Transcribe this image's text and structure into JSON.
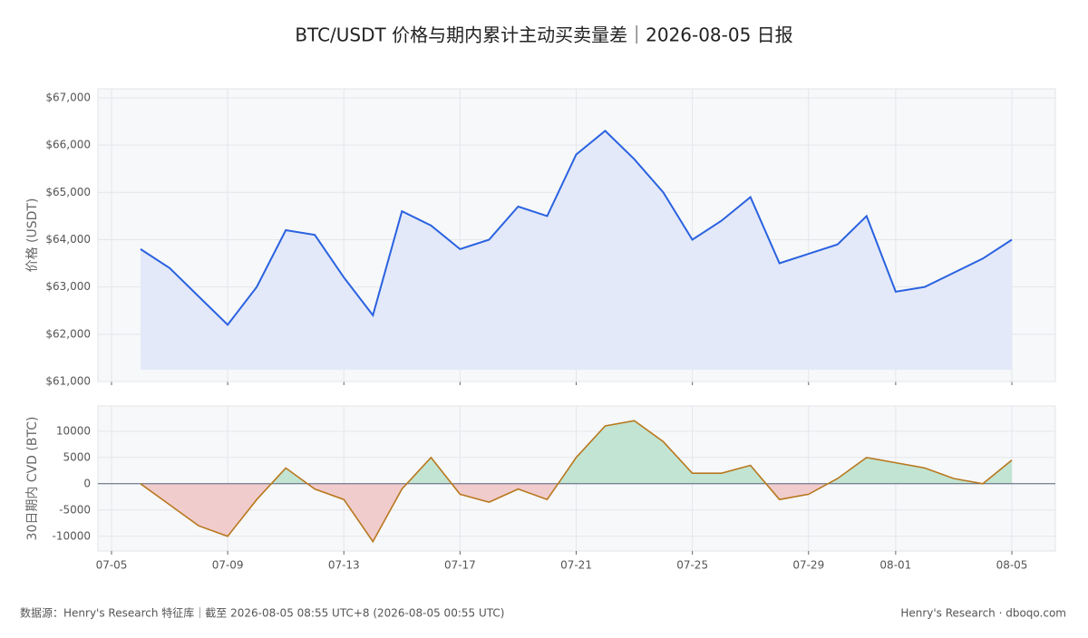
{
  "title": "BTC/USDT 价格与期内累计主动买卖量差｜2026-08-05 日报",
  "footer_left": "数据源：Henry's Research 特征库｜截至 2026-08-05 08:55 UTC+8 (2026-08-05 00:55 UTC)",
  "footer_right": "Henry's Research · dboqo.com",
  "chart_data": [
    {
      "type": "line",
      "ylabel": "价格 (USDT)",
      "color": "#2a62e0",
      "fill": "#e3e9f8",
      "grid": true,
      "x": [
        "07-06",
        "07-07",
        "07-08",
        "07-09",
        "07-10",
        "07-11",
        "07-12",
        "07-13",
        "07-14",
        "07-15",
        "07-16",
        "07-17",
        "07-18",
        "07-19",
        "07-20",
        "07-21",
        "07-22",
        "07-23",
        "07-24",
        "07-25",
        "07-26",
        "07-27",
        "07-28",
        "07-29",
        "07-30",
        "07-31",
        "08-01",
        "08-02",
        "08-03",
        "08-04",
        "08-05"
      ],
      "values": [
        63800,
        63400,
        62800,
        62200,
        63000,
        64200,
        64100,
        63200,
        62400,
        64600,
        64300,
        63800,
        64000,
        64700,
        64500,
        65800,
        66300,
        65700,
        65000,
        64000,
        64400,
        64900,
        63500,
        63700,
        63900,
        64500,
        62900,
        63000,
        63300,
        63600,
        64000
      ],
      "xlim": [
        "07-05",
        "08-05"
      ],
      "ylim": [
        61000,
        67190
      ],
      "yticks": [
        {
          "value": 61000,
          "label": "$61,000"
        },
        {
          "value": 62000,
          "label": "$62,000"
        },
        {
          "value": 63000,
          "label": "$63,000"
        },
        {
          "value": 64000,
          "label": "$64,000"
        },
        {
          "value": 65000,
          "label": "$65,000"
        },
        {
          "value": 66000,
          "label": "$66,000"
        },
        {
          "value": 67000,
          "label": "$67,000"
        }
      ]
    },
    {
      "type": "area-signed",
      "ylabel": "30日期内 CVD (BTC)",
      "color": "#b8781e",
      "positive_color": "#c2e4d2",
      "negative_color": "#f1cccc",
      "grid": true,
      "x": [
        "07-06",
        "07-07",
        "07-08",
        "07-09",
        "07-10",
        "07-11",
        "07-12",
        "07-13",
        "07-14",
        "07-15",
        "07-16",
        "07-17",
        "07-18",
        "07-19",
        "07-20",
        "07-21",
        "07-22",
        "07-23",
        "07-24",
        "07-25",
        "07-26",
        "07-27",
        "07-28",
        "07-29",
        "07-30",
        "07-31",
        "08-01",
        "08-02",
        "08-03",
        "08-04",
        "08-05"
      ],
      "values": [
        0,
        -4000,
        -8000,
        -10000,
        -3000,
        3000,
        -1000,
        -3000,
        -11000,
        -1000,
        5000,
        -2000,
        -3500,
        -1000,
        -3000,
        5000,
        11000,
        12000,
        8000,
        2000,
        2000,
        3500,
        -3000,
        -2000,
        1000,
        5000,
        4000,
        3000,
        1000,
        0,
        4500
      ],
      "xlim": [
        "07-05",
        "08-05"
      ],
      "xticks": [
        "07-05",
        "07-09",
        "07-13",
        "07-17",
        "07-21",
        "07-25",
        "07-29",
        "08-01",
        "08-05"
      ],
      "ylim": [
        -12800,
        14800
      ],
      "yticks": [
        -10000,
        -5000,
        0,
        5000,
        10000
      ]
    }
  ]
}
